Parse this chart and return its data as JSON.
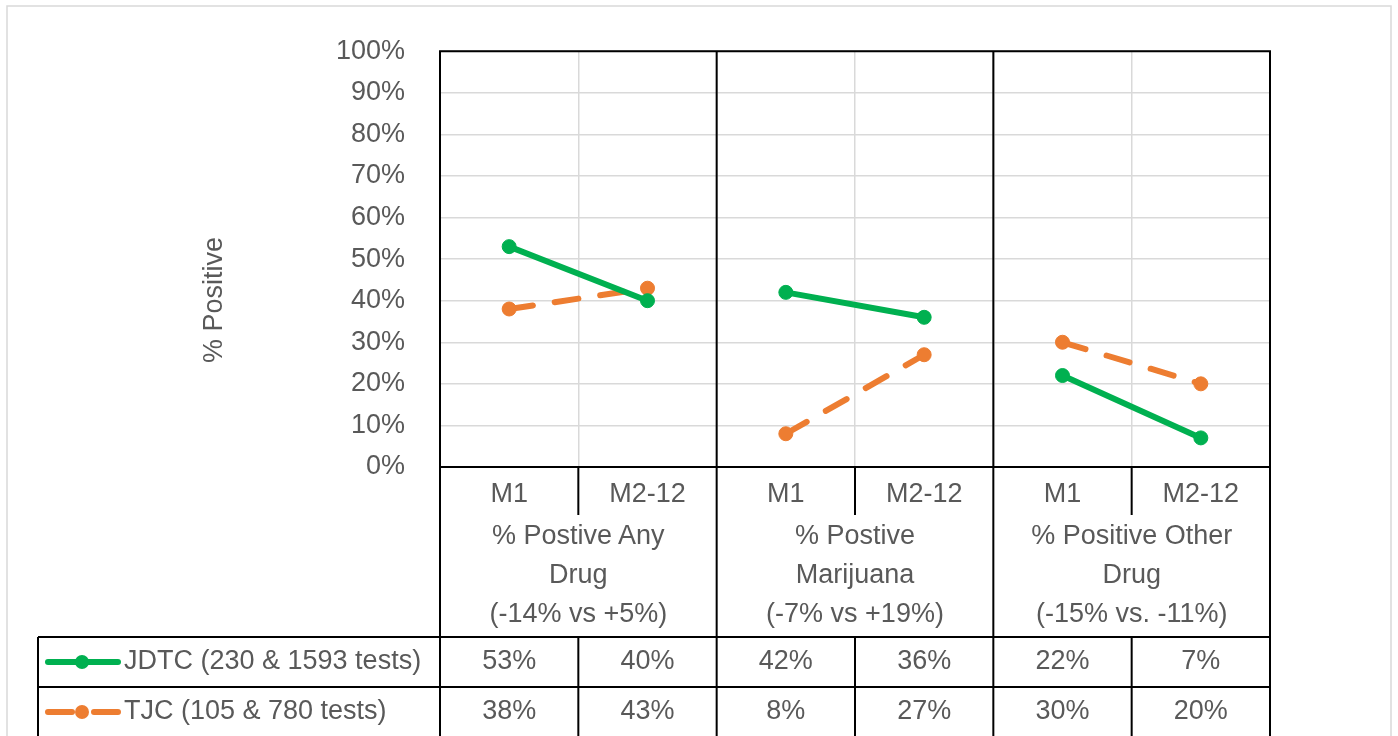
{
  "chart_data": {
    "type": "line",
    "ylabel": "% Positive",
    "categories": [
      "M1",
      "M2-12",
      "M1",
      "M2-12",
      "M1",
      "M2-12"
    ],
    "series": [
      {
        "name": "JDTC (230 & 1593 tests)",
        "color": "#00b050",
        "line_style": "solid",
        "values": [
          53,
          40,
          42,
          36,
          22,
          7
        ],
        "value_labels": [
          "53%",
          "40%",
          "42%",
          "36%",
          "22%",
          "7%"
        ]
      },
      {
        "name": "TJC (105 & 780 tests)",
        "color": "#ed7d31",
        "line_style": "dashed",
        "values": [
          38,
          43,
          8,
          27,
          30,
          20
        ],
        "value_labels": [
          "38%",
          "43%",
          "8%",
          "27%",
          "30%",
          "20%"
        ]
      }
    ],
    "ylim": [
      0,
      100
    ],
    "yticks": [
      {
        "value": 0,
        "label": "0%"
      },
      {
        "value": 10,
        "label": "10%"
      },
      {
        "value": 20,
        "label": "20%"
      },
      {
        "value": 30,
        "label": "30%"
      },
      {
        "value": 40,
        "label": "40%"
      },
      {
        "value": 50,
        "label": "50%"
      },
      {
        "value": 60,
        "label": "60%"
      },
      {
        "value": 70,
        "label": "70%"
      },
      {
        "value": 80,
        "label": "80%"
      },
      {
        "value": 90,
        "label": "90%"
      },
      {
        "value": 100,
        "label": "100%"
      }
    ],
    "grid": true,
    "legend": "bottom left",
    "marker": "circle",
    "annotations": [
      "% Postive Any Drug\n(-14% vs +5%)",
      "% Postive Marijuana\n(-7% vs +19%)",
      "% Positive Other Drug\n(-15% vs. -11%)"
    ]
  }
}
